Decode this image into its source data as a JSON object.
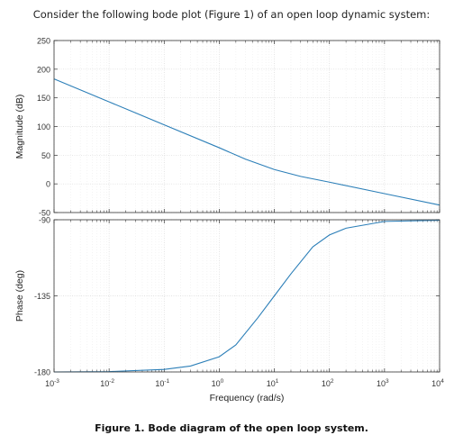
{
  "question": "Consider the following bode plot (Figure 1) of an open loop dynamic system:",
  "caption": "Figure 1. Bode diagram of the open loop system.",
  "chart_data": [
    {
      "type": "line",
      "panel": "magnitude",
      "xscale": "log",
      "xlim": [
        0.001,
        10000
      ],
      "ylim": [
        -50,
        250
      ],
      "yticks": [
        -50,
        0,
        50,
        100,
        150,
        200,
        250
      ],
      "ytick_labels": [
        "-50",
        "0",
        "50",
        "100",
        "150",
        "200",
        "250"
      ],
      "ylabel": "Magnitude (dB)",
      "xlabel": "",
      "grid": true,
      "color": "#2c7fb8",
      "series": [
        {
          "x": [
            0.001,
            0.01,
            0.1,
            1,
            3,
            10,
            30,
            100,
            1000,
            10000
          ],
          "values": [
            183,
            143,
            103,
            63,
            43,
            25,
            13,
            3,
            -17,
            -37
          ]
        }
      ]
    },
    {
      "type": "line",
      "panel": "phase",
      "xscale": "log",
      "xlim": [
        0.001,
        10000
      ],
      "ylim": [
        -180,
        -90
      ],
      "yticks": [
        -180,
        -135,
        -90
      ],
      "ytick_labels": [
        "-180",
        "-135",
        "-90"
      ],
      "xticks": [
        0.001,
        0.01,
        0.1,
        1,
        10,
        100,
        1000,
        10000
      ],
      "xtick_labels": [
        {
          "base": "10",
          "exp": "-3"
        },
        {
          "base": "10",
          "exp": "-2"
        },
        {
          "base": "10",
          "exp": "-1"
        },
        {
          "base": "10",
          "exp": "0"
        },
        {
          "base": "10",
          "exp": "1"
        },
        {
          "base": "10",
          "exp": "2"
        },
        {
          "base": "10",
          "exp": "3"
        },
        {
          "base": "10",
          "exp": "4"
        }
      ],
      "ylabel": "Phase (deg)",
      "xlabel": "Frequency  (rad/s)",
      "grid": true,
      "color": "#2c7fb8",
      "series": [
        {
          "x": [
            0.001,
            0.01,
            0.1,
            0.3,
            1,
            2,
            5,
            10,
            20,
            50,
            100,
            200,
            1000,
            10000
          ],
          "values": [
            -180,
            -179.8,
            -178.5,
            -176.5,
            -171,
            -164,
            -148,
            -135,
            -122,
            -106,
            -99,
            -95,
            -91,
            -90.3
          ]
        }
      ]
    }
  ]
}
